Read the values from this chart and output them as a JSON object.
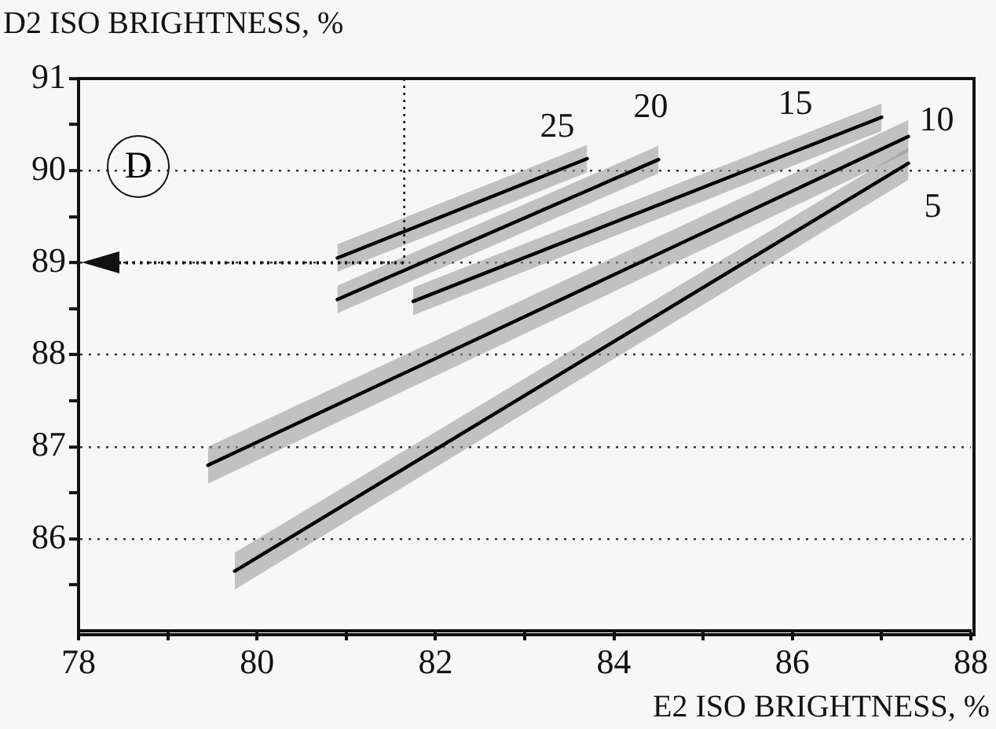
{
  "chart_data": {
    "type": "line",
    "xlabel": "E2 ISO BRIGHTNESS, %",
    "ylabel": "D2 ISO BRIGHTNESS, %",
    "annotations": [
      "D"
    ],
    "xlim": [
      78,
      88
    ],
    "ylim": [
      85,
      91
    ],
    "xticks": [
      78,
      {
        "value": 79,
        "label": null
      },
      80,
      {
        "value": 81,
        "label": null
      },
      82,
      {
        "value": 83,
        "label": null
      },
      84,
      {
        "value": 85,
        "label": null
      },
      86,
      {
        "value": 87,
        "label": null
      },
      88
    ],
    "yticks": [
      {
        "value": 85.5,
        "label": null
      },
      86,
      {
        "value": 86.5,
        "label": null
      },
      87,
      {
        "value": 87.5,
        "label": null
      },
      88,
      {
        "value": 88.5,
        "label": null
      },
      89,
      {
        "value": 89.5,
        "label": null
      },
      90,
      {
        "value": 90.5,
        "label": null
      },
      91
    ],
    "grid": "y",
    "line_style": "solid",
    "marker": "none",
    "series": [
      {
        "name": "25",
        "color": "#000000",
        "x": [
          80.9,
          83.7
        ],
        "values": [
          89.05,
          90.13
        ],
        "lower": [
          88.9,
          89.98
        ],
        "upper": [
          89.2,
          90.28
        ]
      },
      {
        "name": "20",
        "color": "#000000",
        "x": [
          80.9,
          84.5
        ],
        "values": [
          88.6,
          90.12
        ],
        "lower": [
          88.45,
          89.97
        ],
        "upper": [
          88.75,
          90.27
        ]
      },
      {
        "name": "15",
        "color": "#000000",
        "x": [
          81.75,
          87
        ],
        "values": [
          88.58,
          90.58
        ],
        "lower": [
          88.43,
          90.43
        ],
        "upper": [
          88.73,
          90.73
        ]
      },
      {
        "name": "10",
        "color": "#000000",
        "x": [
          79.45,
          87.3
        ],
        "values": [
          86.8,
          90.37
        ],
        "lower": [
          86.6,
          90.2
        ],
        "upper": [
          87,
          90.55
        ]
      },
      {
        "name": "5",
        "color": "#000000",
        "x": [
          79.75,
          87.3
        ],
        "values": [
          85.65,
          90.08
        ],
        "lower": [
          85.45,
          89.9
        ],
        "upper": [
          85.85,
          90.25
        ]
      }
    ],
    "ref_lines": [
      {
        "axis": "x",
        "value": 81.65,
        "line_style": "dotted"
      },
      {
        "axis": "y",
        "value": 89,
        "line_style": "dotted"
      }
    ]
  }
}
